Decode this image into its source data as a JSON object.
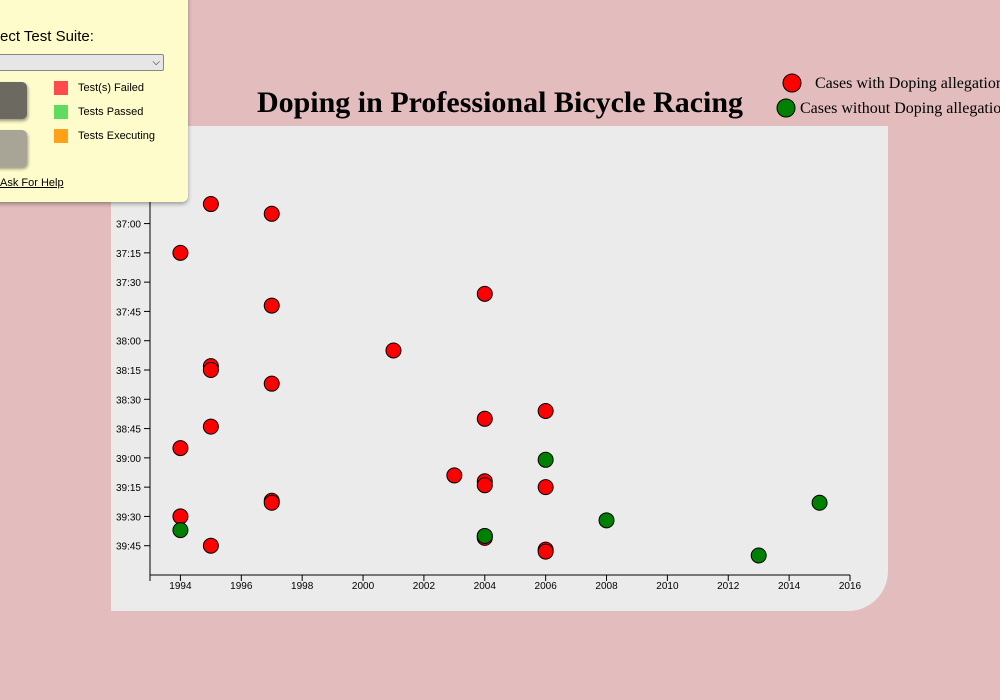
{
  "test_panel": {
    "suite_label": "ect Test Suite:",
    "suite_value": "",
    "status": [
      {
        "label": "Test(s) Failed",
        "color": "#ff4b4b"
      },
      {
        "label": "Tests Passed",
        "color": "#5fdc5f"
      },
      {
        "label": "Tests Executing",
        "color": "#ffa21a"
      }
    ],
    "help_label": "Ask For Help"
  },
  "chart_data": {
    "type": "scatter",
    "title": "Doping in Professional Bicycle Racing",
    "xlabel": "",
    "ylabel": "",
    "x_ticks": [
      "1994",
      "1996",
      "1998",
      "2000",
      "2002",
      "2004",
      "2006",
      "2008",
      "2010",
      "2012",
      "2014",
      "2016"
    ],
    "y_ticks": [
      "37:00",
      "37:15",
      "37:30",
      "37:45",
      "38:00",
      "38:15",
      "38:30",
      "38:45",
      "39:00",
      "39:15",
      "39:30",
      "39:45"
    ],
    "xlim": [
      1993,
      2016
    ],
    "ylim_seconds": [
      2190,
      2400
    ],
    "legend_position": "top-right",
    "series": [
      {
        "name": "Cases with Doping allegations",
        "color": "#ff0000",
        "points": [
          {
            "x": 1995,
            "y": "36:50"
          },
          {
            "x": 1997,
            "y": "36:55"
          },
          {
            "x": 1994,
            "y": "37:15"
          },
          {
            "x": 2004,
            "y": "37:36"
          },
          {
            "x": 1997,
            "y": "37:42"
          },
          {
            "x": 2001,
            "y": "38:05"
          },
          {
            "x": 1995,
            "y": "38:13"
          },
          {
            "x": 1995,
            "y": "38:15"
          },
          {
            "x": 1997,
            "y": "38:22"
          },
          {
            "x": 2006,
            "y": "38:36"
          },
          {
            "x": 2004,
            "y": "38:40"
          },
          {
            "x": 1995,
            "y": "38:44"
          },
          {
            "x": 1994,
            "y": "38:55"
          },
          {
            "x": 2003,
            "y": "39:09"
          },
          {
            "x": 2004,
            "y": "39:12"
          },
          {
            "x": 2004,
            "y": "39:14"
          },
          {
            "x": 2006,
            "y": "39:15"
          },
          {
            "x": 1997,
            "y": "39:22"
          },
          {
            "x": 1997,
            "y": "39:23"
          },
          {
            "x": 1994,
            "y": "39:30"
          },
          {
            "x": 2004,
            "y": "39:40"
          },
          {
            "x": 2004,
            "y": "39:41"
          },
          {
            "x": 1995,
            "y": "39:45"
          },
          {
            "x": 2006,
            "y": "39:47"
          },
          {
            "x": 2006,
            "y": "39:48"
          }
        ]
      },
      {
        "name": "Cases without Doping allegations",
        "color": "#008000",
        "points": [
          {
            "x": 2006,
            "y": "39:01"
          },
          {
            "x": 2015,
            "y": "39:23"
          },
          {
            "x": 2008,
            "y": "39:32"
          },
          {
            "x": 1994,
            "y": "39:37"
          },
          {
            "x": 2004,
            "y": "39:40"
          },
          {
            "x": 2013,
            "y": "39:50"
          }
        ]
      }
    ]
  }
}
